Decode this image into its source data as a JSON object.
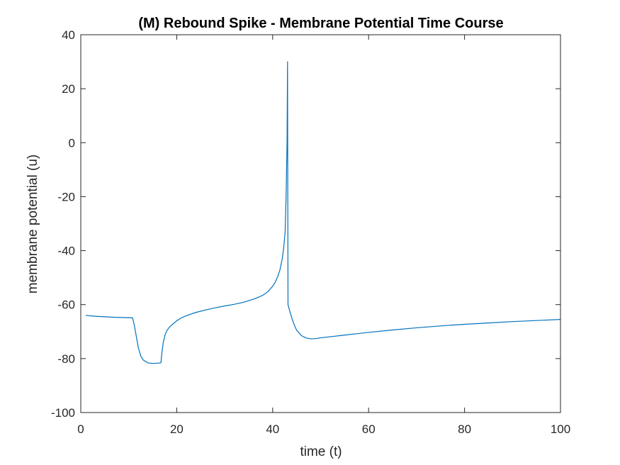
{
  "chart_data": {
    "type": "line",
    "title": "(M) Rebound Spike - Membrane Potential Time Course",
    "xlabel": "time (t)",
    "ylabel": "membrane potential (u)",
    "xlim": [
      0,
      100
    ],
    "ylim": [
      -100,
      40
    ],
    "xticks": [
      0,
      20,
      40,
      60,
      80,
      100
    ],
    "yticks": [
      -100,
      -80,
      -60,
      -40,
      -20,
      0,
      20,
      40
    ],
    "grid": false,
    "series": [
      {
        "color": "#0072BD",
        "x": [
          1,
          3,
          5,
          7,
          9,
          10.8,
          11.2,
          11.6,
          12,
          12.5,
          13,
          14,
          15,
          16,
          16.7,
          16.9,
          17.2,
          17.6,
          18,
          18.5,
          19,
          20,
          21,
          22,
          24,
          26,
          28,
          30,
          32,
          34,
          36,
          37,
          38,
          39,
          40,
          40.5,
          41,
          41.5,
          42,
          42.3,
          42.6,
          42.8,
          43,
          43.1,
          43.2,
          43.5,
          44,
          44.5,
          45,
          46,
          47,
          48,
          49,
          50,
          55,
          60,
          65,
          70,
          75,
          80,
          85,
          90,
          95,
          100
        ],
        "y": [
          -64,
          -64.3,
          -64.5,
          -64.7,
          -64.8,
          -64.9,
          -68,
          -72,
          -76,
          -79,
          -80.5,
          -81.6,
          -81.8,
          -81.7,
          -81.6,
          -78,
          -74,
          -71,
          -69.5,
          -68.3,
          -67.5,
          -66,
          -64.9,
          -64.1,
          -62.9,
          -62,
          -61.2,
          -60.5,
          -59.9,
          -59.1,
          -58,
          -57.3,
          -56.5,
          -55.2,
          -53.2,
          -51.8,
          -49.9,
          -47.3,
          -43,
          -39,
          -33,
          -20,
          0,
          30,
          -60,
          -62,
          -65,
          -67.5,
          -69.5,
          -71.5,
          -72.4,
          -72.7,
          -72.6,
          -72.3,
          -71.3,
          -70.3,
          -69.4,
          -68.6,
          -67.9,
          -67.3,
          -66.8,
          -66.3,
          -65.9,
          -65.5
        ]
      }
    ]
  }
}
